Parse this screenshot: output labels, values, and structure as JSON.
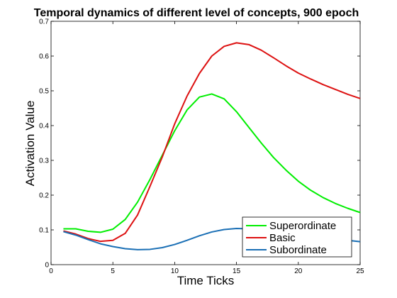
{
  "chart_data": {
    "type": "line",
    "title": "Temporal dynamics of different level of concepts, 900 epoch",
    "xlabel": "Time Ticks",
    "ylabel": "Activation Value",
    "xlim": [
      0,
      25
    ],
    "ylim": [
      0,
      0.7
    ],
    "xticks": [
      0,
      5,
      10,
      15,
      20,
      25
    ],
    "yticks": [
      0,
      0.1,
      0.2,
      0.3,
      0.4,
      0.5,
      0.6,
      0.7
    ],
    "grid": false,
    "legend_position": "bottom-right",
    "x": [
      1,
      2,
      3,
      4,
      5,
      6,
      7,
      8,
      9,
      10,
      11,
      12,
      13,
      14,
      15,
      16,
      17,
      18,
      19,
      20,
      21,
      22,
      23,
      24,
      25
    ],
    "series": [
      {
        "name": "Superordinate",
        "color": "#00ee00",
        "values": [
          0.103,
          0.103,
          0.096,
          0.093,
          0.102,
          0.13,
          0.18,
          0.245,
          0.315,
          0.385,
          0.445,
          0.482,
          0.491,
          0.477,
          0.44,
          0.395,
          0.35,
          0.308,
          0.272,
          0.24,
          0.214,
          0.193,
          0.176,
          0.162,
          0.15
        ]
      },
      {
        "name": "Basic",
        "color": "#dd1111",
        "values": [
          0.097,
          0.088,
          0.075,
          0.067,
          0.07,
          0.09,
          0.143,
          0.225,
          0.31,
          0.405,
          0.485,
          0.55,
          0.6,
          0.628,
          0.638,
          0.633,
          0.617,
          0.595,
          0.572,
          0.551,
          0.534,
          0.518,
          0.504,
          0.49,
          0.478
        ]
      },
      {
        "name": "Subordinate",
        "color": "#1a6fb5",
        "values": [
          0.095,
          0.085,
          0.072,
          0.06,
          0.052,
          0.046,
          0.043,
          0.044,
          0.049,
          0.058,
          0.07,
          0.083,
          0.094,
          0.101,
          0.104,
          0.103,
          0.099,
          0.095,
          0.09,
          0.086,
          0.082,
          0.078,
          0.074,
          0.07,
          0.066
        ]
      }
    ]
  }
}
